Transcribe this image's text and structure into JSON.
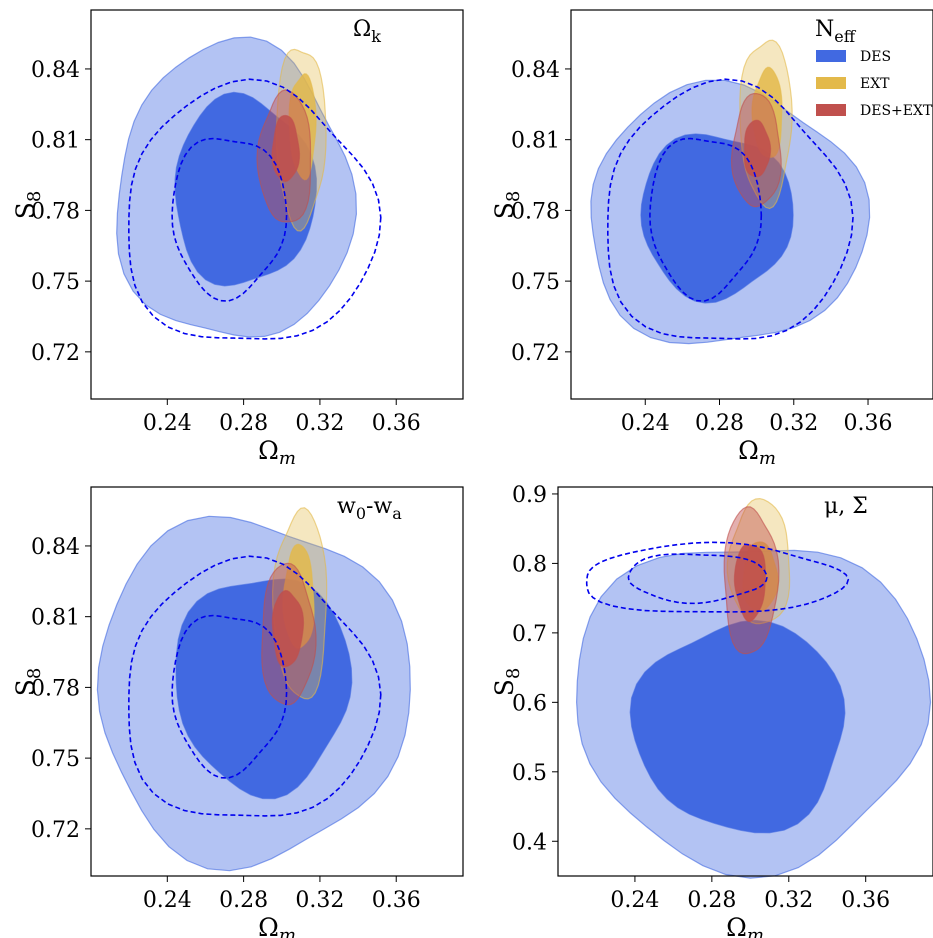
{
  "colors": {
    "DES": "#4169e1",
    "EXT": "#e3b94a",
    "DES+EXT": "#c0504d",
    "dashed": "#0000ee"
  },
  "legend": {
    "items": [
      {
        "label": "DES",
        "color": "#4169e1"
      },
      {
        "label": "EXT",
        "color": "#e3b94a"
      },
      {
        "label": "DES+EXT",
        "color": "#c0504d"
      }
    ]
  },
  "chart_data": [
    {
      "type": "scatter",
      "title": "Ω_k",
      "title_main": "Ω",
      "title_sub": "k",
      "xlabel": "Ω_m",
      "ylabel": "S_8",
      "xlim": [
        0.2,
        0.395
      ],
      "ylim": [
        0.7,
        0.865
      ],
      "xticks": [
        0.24,
        0.28,
        0.32,
        0.36
      ],
      "xtick_labels": [
        "0.24",
        "0.28",
        "0.32",
        "0.36"
      ],
      "yticks": [
        0.72,
        0.75,
        0.78,
        0.81,
        0.84
      ],
      "ytick_labels": [
        "0.72",
        "0.75",
        "0.78",
        "0.81",
        "0.84"
      ],
      "contours": [
        {
          "series": "DES",
          "level": "95%",
          "center": [
            0.275,
            0.787
          ],
          "half_width": [
            0.062,
            0.063
          ]
        },
        {
          "series": "DES",
          "level": "68%",
          "center": [
            0.28,
            0.788
          ],
          "half_width": [
            0.037,
            0.04
          ]
        },
        {
          "series": "EXT",
          "level": "95%",
          "center": [
            0.31,
            0.812
          ],
          "half_width": [
            0.013,
            0.038
          ]
        },
        {
          "series": "EXT",
          "level": "68%",
          "center": [
            0.311,
            0.816
          ],
          "half_width": [
            0.007,
            0.022
          ]
        },
        {
          "series": "DES+EXT",
          "level": "95%",
          "center": [
            0.302,
            0.802
          ],
          "half_width": [
            0.014,
            0.028
          ]
        },
        {
          "series": "DES+EXT",
          "level": "68%",
          "center": [
            0.302,
            0.806
          ],
          "half_width": [
            0.007,
            0.014
          ]
        }
      ],
      "dashed_contours": [
        {
          "level": "95%",
          "center": [
            0.283,
            0.777
          ],
          "half_width": [
            0.066,
            0.055
          ]
        },
        {
          "level": "68%",
          "center": [
            0.272,
            0.778
          ],
          "half_width": [
            0.03,
            0.034
          ]
        }
      ]
    },
    {
      "type": "scatter",
      "title": "N_eff",
      "title_main": "N",
      "title_sub": "eff",
      "xlabel": "Ω_m",
      "ylabel": "S_8",
      "xlim": [
        0.2,
        0.395
      ],
      "ylim": [
        0.7,
        0.865
      ],
      "xticks": [
        0.24,
        0.28,
        0.32,
        0.36
      ],
      "xtick_labels": [
        "0.24",
        "0.28",
        "0.32",
        "0.36"
      ],
      "yticks": [
        0.72,
        0.75,
        0.78,
        0.81,
        0.84
      ],
      "ytick_labels": [
        "0.72",
        "0.75",
        "0.78",
        "0.81",
        "0.84"
      ],
      "legend_position": "top-right",
      "contours": [
        {
          "series": "DES",
          "level": "95%",
          "center": [
            0.283,
            0.777
          ],
          "half_width": [
            0.075,
            0.055
          ]
        },
        {
          "series": "DES",
          "level": "68%",
          "center": [
            0.278,
            0.778
          ],
          "half_width": [
            0.041,
            0.035
          ]
        },
        {
          "series": "EXT",
          "level": "95%",
          "center": [
            0.305,
            0.818
          ],
          "half_width": [
            0.014,
            0.035
          ]
        },
        {
          "series": "EXT",
          "level": "68%",
          "center": [
            0.306,
            0.821
          ],
          "half_width": [
            0.008,
            0.019
          ]
        },
        {
          "series": "DES+EXT",
          "level": "95%",
          "center": [
            0.3,
            0.805
          ],
          "half_width": [
            0.013,
            0.024
          ]
        },
        {
          "series": "DES+EXT",
          "level": "68%",
          "center": [
            0.3,
            0.806
          ],
          "half_width": [
            0.007,
            0.012
          ]
        }
      ],
      "dashed_contours": [
        {
          "level": "95%",
          "center": [
            0.283,
            0.777
          ],
          "half_width": [
            0.066,
            0.055
          ]
        },
        {
          "level": "68%",
          "center": [
            0.272,
            0.778
          ],
          "half_width": [
            0.03,
            0.034
          ]
        }
      ]
    },
    {
      "type": "scatter",
      "title": "w_0-w_a",
      "title_main": "w",
      "title_sub": "0",
      "title_mid": "-w",
      "title_sub2": "a",
      "xlabel": "Ω_m",
      "ylabel": "S_8",
      "xlim": [
        0.2,
        0.395
      ],
      "ylim": [
        0.7,
        0.865
      ],
      "xticks": [
        0.24,
        0.28,
        0.32,
        0.36
      ],
      "xtick_labels": [
        "0.24",
        "0.28",
        "0.32",
        "0.36"
      ],
      "yticks": [
        0.72,
        0.75,
        0.78,
        0.81,
        0.84
      ],
      "ytick_labels": [
        "0.72",
        "0.75",
        "0.78",
        "0.81",
        "0.84"
      ],
      "contours": [
        {
          "series": "DES",
          "level": "95%",
          "center": [
            0.284,
            0.779
          ],
          "half_width": [
            0.082,
            0.073
          ]
        },
        {
          "series": "DES",
          "level": "68%",
          "center": [
            0.29,
            0.782
          ],
          "half_width": [
            0.046,
            0.046
          ]
        },
        {
          "series": "EXT",
          "level": "95%",
          "center": [
            0.31,
            0.815
          ],
          "half_width": [
            0.014,
            0.04
          ]
        },
        {
          "series": "EXT",
          "level": "68%",
          "center": [
            0.309,
            0.818
          ],
          "half_width": [
            0.008,
            0.022
          ]
        },
        {
          "series": "DES+EXT",
          "level": "95%",
          "center": [
            0.303,
            0.802
          ],
          "half_width": [
            0.014,
            0.03
          ]
        },
        {
          "series": "DES+EXT",
          "level": "68%",
          "center": [
            0.303,
            0.805
          ],
          "half_width": [
            0.008,
            0.016
          ]
        }
      ],
      "dashed_contours": [
        {
          "level": "95%",
          "center": [
            0.283,
            0.777
          ],
          "half_width": [
            0.066,
            0.055
          ]
        },
        {
          "level": "68%",
          "center": [
            0.272,
            0.778
          ],
          "half_width": [
            0.03,
            0.034
          ]
        }
      ]
    },
    {
      "type": "scatter",
      "title": "μ, Σ",
      "title_main": "μ, Σ",
      "xlabel": "Ω_m",
      "ylabel": "S_8",
      "xlim": [
        0.2,
        0.395
      ],
      "ylim": [
        0.35,
        0.91
      ],
      "xticks": [
        0.24,
        0.28,
        0.32,
        0.36
      ],
      "xtick_labels": [
        "0.24",
        "0.28",
        "0.32",
        "0.36"
      ],
      "yticks": [
        0.4,
        0.5,
        0.6,
        0.7,
        0.8,
        0.9
      ],
      "ytick_labels": [
        "0.4",
        "0.5",
        "0.6",
        "0.7",
        "0.8",
        "0.9"
      ],
      "contours": [
        {
          "series": "DES",
          "level": "95%",
          "center": [
            0.3,
            0.6
          ],
          "half_width": [
            0.092,
            0.235
          ]
        },
        {
          "series": "DES",
          "level": "68%",
          "center": [
            0.295,
            0.565
          ],
          "half_width": [
            0.055,
            0.15
          ]
        },
        {
          "series": "EXT",
          "level": "95%",
          "center": [
            0.305,
            0.8
          ],
          "half_width": [
            0.016,
            0.09
          ]
        },
        {
          "series": "EXT",
          "level": "68%",
          "center": [
            0.305,
            0.78
          ],
          "half_width": [
            0.009,
            0.05
          ]
        },
        {
          "series": "DES+EXT",
          "level": "95%",
          "center": [
            0.3,
            0.775
          ],
          "half_width": [
            0.014,
            0.105
          ]
        },
        {
          "series": "DES+EXT",
          "level": "68%",
          "center": [
            0.3,
            0.775
          ],
          "half_width": [
            0.008,
            0.055
          ]
        }
      ],
      "dashed_contours": [
        {
          "level": "95%",
          "center": [
            0.28,
            0.777
          ],
          "half_width": [
            0.068,
            0.05
          ]
        },
        {
          "level": "68%",
          "center": [
            0.272,
            0.78
          ],
          "half_width": [
            0.036,
            0.035
          ]
        }
      ]
    }
  ]
}
